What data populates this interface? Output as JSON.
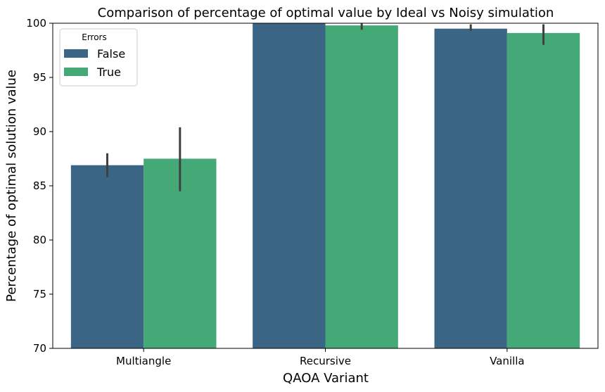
{
  "chart_data": {
    "type": "bar",
    "title": "Comparison of percentage of optimal value by Ideal vs Noisy simulation",
    "xlabel": "QAOA Variant",
    "ylabel": "Percentage of optimal solution value",
    "categories": [
      "Multiangle",
      "Recursive",
      "Vanilla"
    ],
    "ylim": [
      70,
      100
    ],
    "yticks": [
      70,
      75,
      80,
      85,
      90,
      95,
      100
    ],
    "grid": false,
    "legend": {
      "title": "Errors",
      "position": "top-left"
    },
    "series": [
      {
        "name": "False",
        "color": "#3b6584",
        "values": [
          86.9,
          100.0,
          99.5
        ],
        "error_low": [
          85.8,
          100.0,
          99.3
        ],
        "error_high": [
          88.0,
          100.0,
          99.9
        ]
      },
      {
        "name": "True",
        "color": "#45a877",
        "values": [
          87.5,
          99.8,
          99.1
        ],
        "error_low": [
          84.5,
          99.4,
          98.0
        ],
        "error_high": [
          90.4,
          100.2,
          99.9
        ]
      }
    ],
    "error_bar_color": "#404040"
  }
}
